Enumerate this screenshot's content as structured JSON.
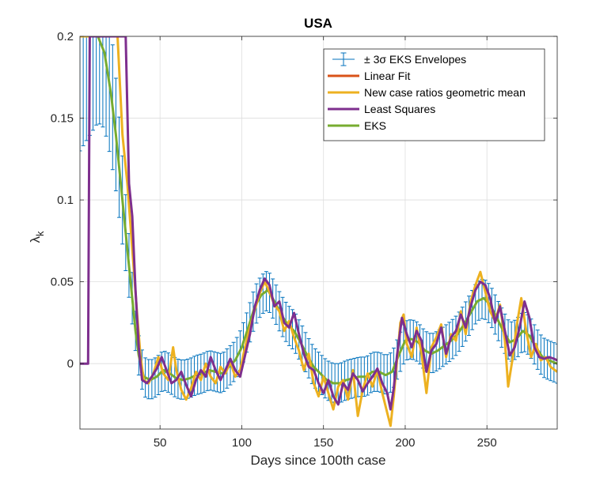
{
  "chart_data": {
    "type": "line",
    "title": "USA",
    "xlabel": "Days since 100th case",
    "ylabel_main": "λ",
    "ylabel_sub": "k",
    "xlim": [
      1,
      293
    ],
    "ylim": [
      -0.04,
      0.2
    ],
    "xticks": [
      50,
      100,
      150,
      200,
      250
    ],
    "xtick_labels": [
      "50",
      "100",
      "150",
      "200",
      "250"
    ],
    "yticks": [
      0,
      0.05,
      0.1,
      0.15,
      0.2
    ],
    "ytick_labels": [
      "0",
      "0.05",
      "0.1",
      "0.15",
      "0.2"
    ],
    "grid": true,
    "legend_position": "top-right",
    "legend": [
      {
        "label": "± 3σ EKS Envelopes",
        "color": "#0072BD",
        "kind": "errorbar"
      },
      {
        "label": "Linear Fit",
        "color": "#D95319",
        "kind": "line"
      },
      {
        "label": "New case ratios geometric mean",
        "color": "#EDB120",
        "kind": "line"
      },
      {
        "label": "Least Squares",
        "color": "#7E2F8E",
        "kind": "line"
      },
      {
        "label": "EKS",
        "color": "#77AC30",
        "kind": "line"
      }
    ],
    "envelope": {
      "name": "± 3σ EKS Envelopes",
      "color": "#0072BD",
      "halfwidth_points": [
        [
          1,
          0.07
        ],
        [
          20,
          0.04
        ],
        [
          35,
          0.012
        ],
        [
          293,
          0.012
        ]
      ]
    },
    "series": [
      {
        "name": "Least Squares",
        "color": "#7E2F8E",
        "points": [
          [
            1,
            0
          ],
          [
            6,
            0
          ],
          [
            7,
            0.2
          ],
          [
            29,
            0.2
          ],
          [
            31,
            0.11
          ],
          [
            33,
            0.09
          ],
          [
            35,
            0.045
          ],
          [
            37,
            0.01
          ],
          [
            39,
            -0.01
          ],
          [
            42,
            -0.012
          ],
          [
            45,
            -0.008
          ],
          [
            48,
            -0.003
          ],
          [
            51,
            0.004
          ],
          [
            54,
            -0.004
          ],
          [
            57,
            -0.012
          ],
          [
            60,
            -0.01
          ],
          [
            63,
            -0.005
          ],
          [
            66,
            -0.013
          ],
          [
            69,
            -0.02
          ],
          [
            72,
            -0.01
          ],
          [
            75,
            -0.004
          ],
          [
            78,
            -0.008
          ],
          [
            81,
            0.004
          ],
          [
            84,
            -0.004
          ],
          [
            87,
            -0.01
          ],
          [
            90,
            -0.004
          ],
          [
            93,
            0.003
          ],
          [
            96,
            -0.004
          ],
          [
            99,
            -0.008
          ],
          [
            102,
            0.005
          ],
          [
            105,
            0.018
          ],
          [
            108,
            0.035
          ],
          [
            111,
            0.045
          ],
          [
            114,
            0.052
          ],
          [
            117,
            0.048
          ],
          [
            120,
            0.035
          ],
          [
            123,
            0.038
          ],
          [
            126,
            0.025
          ],
          [
            129,
            0.022
          ],
          [
            132,
            0.031
          ],
          [
            135,
            0.018
          ],
          [
            138,
            0.006
          ],
          [
            141,
            -0.002
          ],
          [
            144,
            -0.004
          ],
          [
            147,
            -0.012
          ],
          [
            150,
            -0.018
          ],
          [
            153,
            -0.01
          ],
          [
            156,
            -0.02
          ],
          [
            159,
            -0.025
          ],
          [
            162,
            -0.012
          ],
          [
            165,
            -0.016
          ],
          [
            168,
            -0.006
          ],
          [
            171,
            -0.01
          ],
          [
            174,
            -0.017
          ],
          [
            177,
            -0.012
          ],
          [
            180,
            -0.008
          ],
          [
            183,
            -0.003
          ],
          [
            186,
            -0.012
          ],
          [
            189,
            -0.018
          ],
          [
            191,
            -0.028
          ],
          [
            193,
            -0.015
          ],
          [
            195,
            0.005
          ],
          [
            198,
            0.028
          ],
          [
            201,
            0.018
          ],
          [
            204,
            0.01
          ],
          [
            207,
            0.02
          ],
          [
            210,
            0.014
          ],
          [
            213,
            -0.005
          ],
          [
            216,
            0.008
          ],
          [
            219,
            0.012
          ],
          [
            222,
            0.022
          ],
          [
            225,
            0.006
          ],
          [
            228,
            0.016
          ],
          [
            231,
            0.02
          ],
          [
            234,
            0.03
          ],
          [
            237,
            0.022
          ],
          [
            240,
            0.035
          ],
          [
            243,
            0.045
          ],
          [
            246,
            0.05
          ],
          [
            249,
            0.048
          ],
          [
            252,
            0.04
          ],
          [
            255,
            0.025
          ],
          [
            258,
            0.035
          ],
          [
            261,
            0.02
          ],
          [
            264,
            0.005
          ],
          [
            267,
            0.01
          ],
          [
            270,
            0.022
          ],
          [
            273,
            0.038
          ],
          [
            276,
            0.028
          ],
          [
            279,
            0.01
          ],
          [
            282,
            0.004
          ],
          [
            285,
            0.003
          ],
          [
            288,
            0.004
          ],
          [
            291,
            0.003
          ],
          [
            293,
            0.002
          ]
        ]
      },
      {
        "name": "EKS",
        "color": "#77AC30",
        "points": [
          [
            1,
            0.2
          ],
          [
            12,
            0.2
          ],
          [
            16,
            0.19
          ],
          [
            20,
            0.165
          ],
          [
            23,
            0.14
          ],
          [
            26,
            0.11
          ],
          [
            29,
            0.08
          ],
          [
            32,
            0.05
          ],
          [
            35,
            0.02
          ],
          [
            37,
            0.005
          ],
          [
            40,
            -0.008
          ],
          [
            44,
            -0.01
          ],
          [
            48,
            -0.008
          ],
          [
            52,
            -0.004
          ],
          [
            56,
            -0.006
          ],
          [
            60,
            -0.009
          ],
          [
            64,
            -0.01
          ],
          [
            68,
            -0.009
          ],
          [
            72,
            -0.007
          ],
          [
            76,
            -0.006
          ],
          [
            80,
            -0.004
          ],
          [
            84,
            -0.005
          ],
          [
            88,
            -0.006
          ],
          [
            92,
            -0.002
          ],
          [
            96,
            0.002
          ],
          [
            100,
            0.01
          ],
          [
            104,
            0.022
          ],
          [
            108,
            0.035
          ],
          [
            112,
            0.042
          ],
          [
            116,
            0.045
          ],
          [
            120,
            0.038
          ],
          [
            124,
            0.03
          ],
          [
            128,
            0.024
          ],
          [
            132,
            0.02
          ],
          [
            136,
            0.013
          ],
          [
            140,
            0.005
          ],
          [
            144,
            -0.002
          ],
          [
            148,
            -0.006
          ],
          [
            152,
            -0.01
          ],
          [
            156,
            -0.012
          ],
          [
            160,
            -0.012
          ],
          [
            164,
            -0.01
          ],
          [
            168,
            -0.009
          ],
          [
            172,
            -0.008
          ],
          [
            176,
            -0.008
          ],
          [
            180,
            -0.005
          ],
          [
            184,
            -0.005
          ],
          [
            188,
            -0.007
          ],
          [
            192,
            -0.005
          ],
          [
            196,
            0.005
          ],
          [
            200,
            0.014
          ],
          [
            204,
            0.015
          ],
          [
            208,
            0.013
          ],
          [
            212,
            0.008
          ],
          [
            216,
            0.006
          ],
          [
            220,
            0.008
          ],
          [
            224,
            0.011
          ],
          [
            228,
            0.014
          ],
          [
            232,
            0.018
          ],
          [
            236,
            0.024
          ],
          [
            240,
            0.031
          ],
          [
            244,
            0.038
          ],
          [
            248,
            0.04
          ],
          [
            252,
            0.036
          ],
          [
            256,
            0.028
          ],
          [
            260,
            0.02
          ],
          [
            264,
            0.013
          ],
          [
            268,
            0.015
          ],
          [
            272,
            0.02
          ],
          [
            276,
            0.017
          ],
          [
            280,
            0.01
          ],
          [
            284,
            0.004
          ],
          [
            288,
            0.002
          ],
          [
            293,
            0.0
          ]
        ]
      },
      {
        "name": "New case ratios geometric mean",
        "color": "#EDB120",
        "points": [
          [
            1,
            0.2
          ],
          [
            24,
            0.2
          ],
          [
            27,
            0.14
          ],
          [
            30,
            0.11
          ],
          [
            33,
            0.07
          ],
          [
            36,
            0.03
          ],
          [
            38,
            0.005
          ],
          [
            40,
            -0.01
          ],
          [
            43,
            -0.012
          ],
          [
            46,
            -0.006
          ],
          [
            49,
            0.004
          ],
          [
            52,
            -0.006
          ],
          [
            55,
            -0.01
          ],
          [
            58,
            0.01
          ],
          [
            60,
            -0.004
          ],
          [
            63,
            -0.016
          ],
          [
            66,
            -0.022
          ],
          [
            69,
            -0.015
          ],
          [
            72,
            -0.005
          ],
          [
            75,
            -0.01
          ],
          [
            78,
            0.0
          ],
          [
            81,
            -0.008
          ],
          [
            84,
            -0.012
          ],
          [
            87,
            -0.002
          ],
          [
            90,
            -0.006
          ],
          [
            93,
            0.001
          ],
          [
            96,
            -0.008
          ],
          [
            99,
            -0.004
          ],
          [
            102,
            0.01
          ],
          [
            105,
            0.022
          ],
          [
            108,
            0.033
          ],
          [
            111,
            0.043
          ],
          [
            114,
            0.05
          ],
          [
            117,
            0.044
          ],
          [
            120,
            0.036
          ],
          [
            123,
            0.032
          ],
          [
            126,
            0.02
          ],
          [
            129,
            0.026
          ],
          [
            132,
            0.016
          ],
          [
            135,
            0.008
          ],
          [
            138,
            -0.004
          ],
          [
            141,
            0.006
          ],
          [
            144,
            -0.012
          ],
          [
            147,
            -0.02
          ],
          [
            150,
            -0.008
          ],
          [
            153,
            -0.018
          ],
          [
            156,
            -0.028
          ],
          [
            159,
            -0.014
          ],
          [
            162,
            -0.01
          ],
          [
            165,
            -0.022
          ],
          [
            168,
            -0.004
          ],
          [
            171,
            -0.032
          ],
          [
            174,
            -0.016
          ],
          [
            177,
            -0.006
          ],
          [
            180,
            -0.014
          ],
          [
            183,
            -0.004
          ],
          [
            186,
            -0.018
          ],
          [
            189,
            -0.03
          ],
          [
            191,
            -0.038
          ],
          [
            193,
            -0.02
          ],
          [
            195,
            0.002
          ],
          [
            197,
            0.025
          ],
          [
            199,
            0.03
          ],
          [
            201,
            0.012
          ],
          [
            204,
            0.004
          ],
          [
            207,
            0.022
          ],
          [
            210,
            0.006
          ],
          [
            213,
            -0.018
          ],
          [
            216,
            0.01
          ],
          [
            219,
            0.016
          ],
          [
            222,
            0.024
          ],
          [
            225,
            0.004
          ],
          [
            228,
            0.018
          ],
          [
            231,
            0.014
          ],
          [
            234,
            0.032
          ],
          [
            237,
            0.018
          ],
          [
            240,
            0.038
          ],
          [
            243,
            0.048
          ],
          [
            246,
            0.056
          ],
          [
            249,
            0.044
          ],
          [
            252,
            0.032
          ],
          [
            255,
            0.026
          ],
          [
            258,
            0.036
          ],
          [
            261,
            0.014
          ],
          [
            263,
            -0.014
          ],
          [
            266,
            0.005
          ],
          [
            268,
            0.022
          ],
          [
            271,
            0.04
          ],
          [
            274,
            0.02
          ],
          [
            277,
            0.004
          ],
          [
            280,
            0.012
          ],
          [
            283,
            0.002
          ],
          [
            286,
            0.004
          ],
          [
            289,
            -0.002
          ],
          [
            293,
            -0.005
          ]
        ]
      }
    ]
  }
}
